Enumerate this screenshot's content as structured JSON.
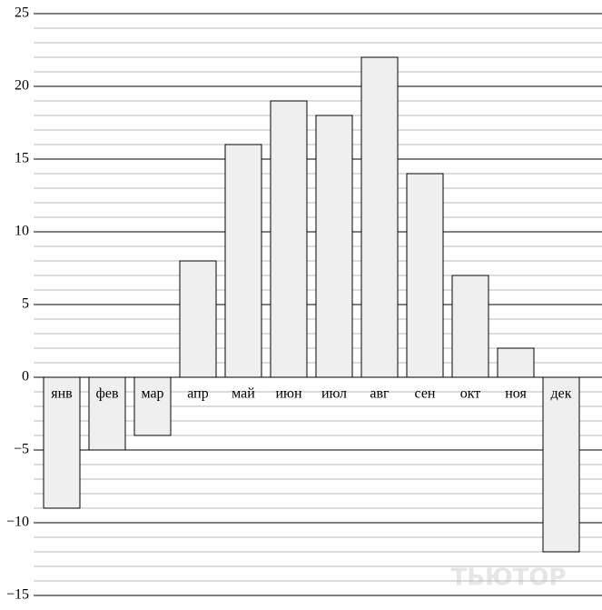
{
  "chart_data": {
    "type": "bar",
    "categories": [
      "янв",
      "фев",
      "мар",
      "апр",
      "май",
      "июн",
      "июл",
      "авг",
      "сен",
      "окт",
      "ноя",
      "дек"
    ],
    "values": [
      -9,
      -5,
      -4,
      8,
      16,
      19,
      18,
      22,
      14,
      7,
      2,
      -12
    ],
    "color": "#efefef",
    "ylim": [
      -15,
      25
    ],
    "yticks": [
      {
        "value": -15,
        "label": "−15"
      },
      {
        "value": -10,
        "label": "−10"
      },
      {
        "value": -5,
        "label": "−5"
      },
      0,
      5,
      10,
      15,
      20,
      25
    ],
    "minor_yticks": [
      -14,
      -13,
      -12,
      -11,
      -9,
      -8,
      -7,
      -6,
      -4,
      -3,
      -2,
      -1,
      1,
      2,
      3,
      4,
      6,
      7,
      8,
      9,
      11,
      12,
      13,
      14,
      16,
      17,
      18,
      19,
      21,
      22,
      23,
      24
    ],
    "grid": true,
    "watermark": "ТЬЮТОР"
  }
}
